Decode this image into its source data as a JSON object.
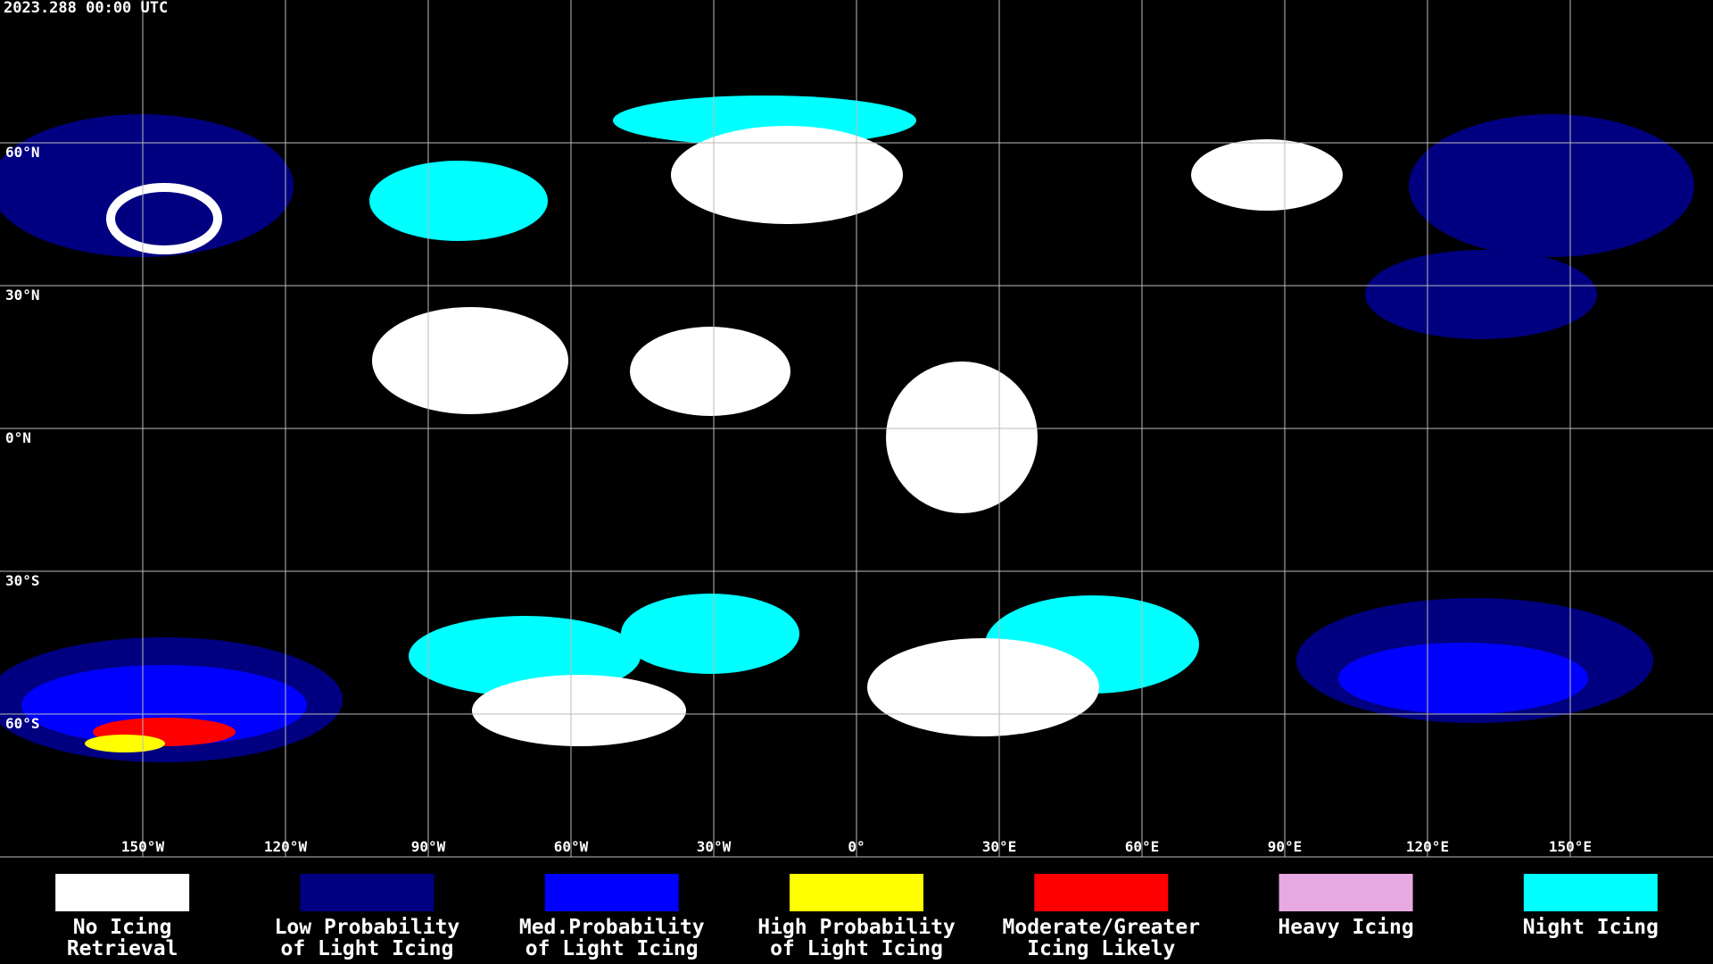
{
  "header": {
    "timestamp": "2023.288 00:00 UTC"
  },
  "map": {
    "lat_labels": [
      "60°N",
      "30°N",
      "0°N",
      "30°S",
      "60°S"
    ],
    "lon_labels": [
      "150°W",
      "120°W",
      "90°W",
      "60°W",
      "30°W",
      "0°",
      "30°E",
      "60°E",
      "90°E",
      "120°E",
      "150°E"
    ]
  },
  "legend": {
    "items": [
      {
        "lines": [
          "No Icing",
          "Retrieval"
        ],
        "color": "#ffffff"
      },
      {
        "lines": [
          "Low Probability",
          "of Light Icing"
        ],
        "color": "#000080"
      },
      {
        "lines": [
          "Med.Probability",
          "of Light Icing"
        ],
        "color": "#0000ff"
      },
      {
        "lines": [
          "High Probability",
          "of Light Icing"
        ],
        "color": "#ffff00"
      },
      {
        "lines": [
          "Moderate/Greater",
          "Icing Likely"
        ],
        "color": "#ff0000"
      },
      {
        "lines": [
          "Heavy Icing"
        ],
        "color": "#e8a8e0"
      },
      {
        "lines": [
          "Night Icing"
        ],
        "color": "#00ffff"
      }
    ]
  }
}
